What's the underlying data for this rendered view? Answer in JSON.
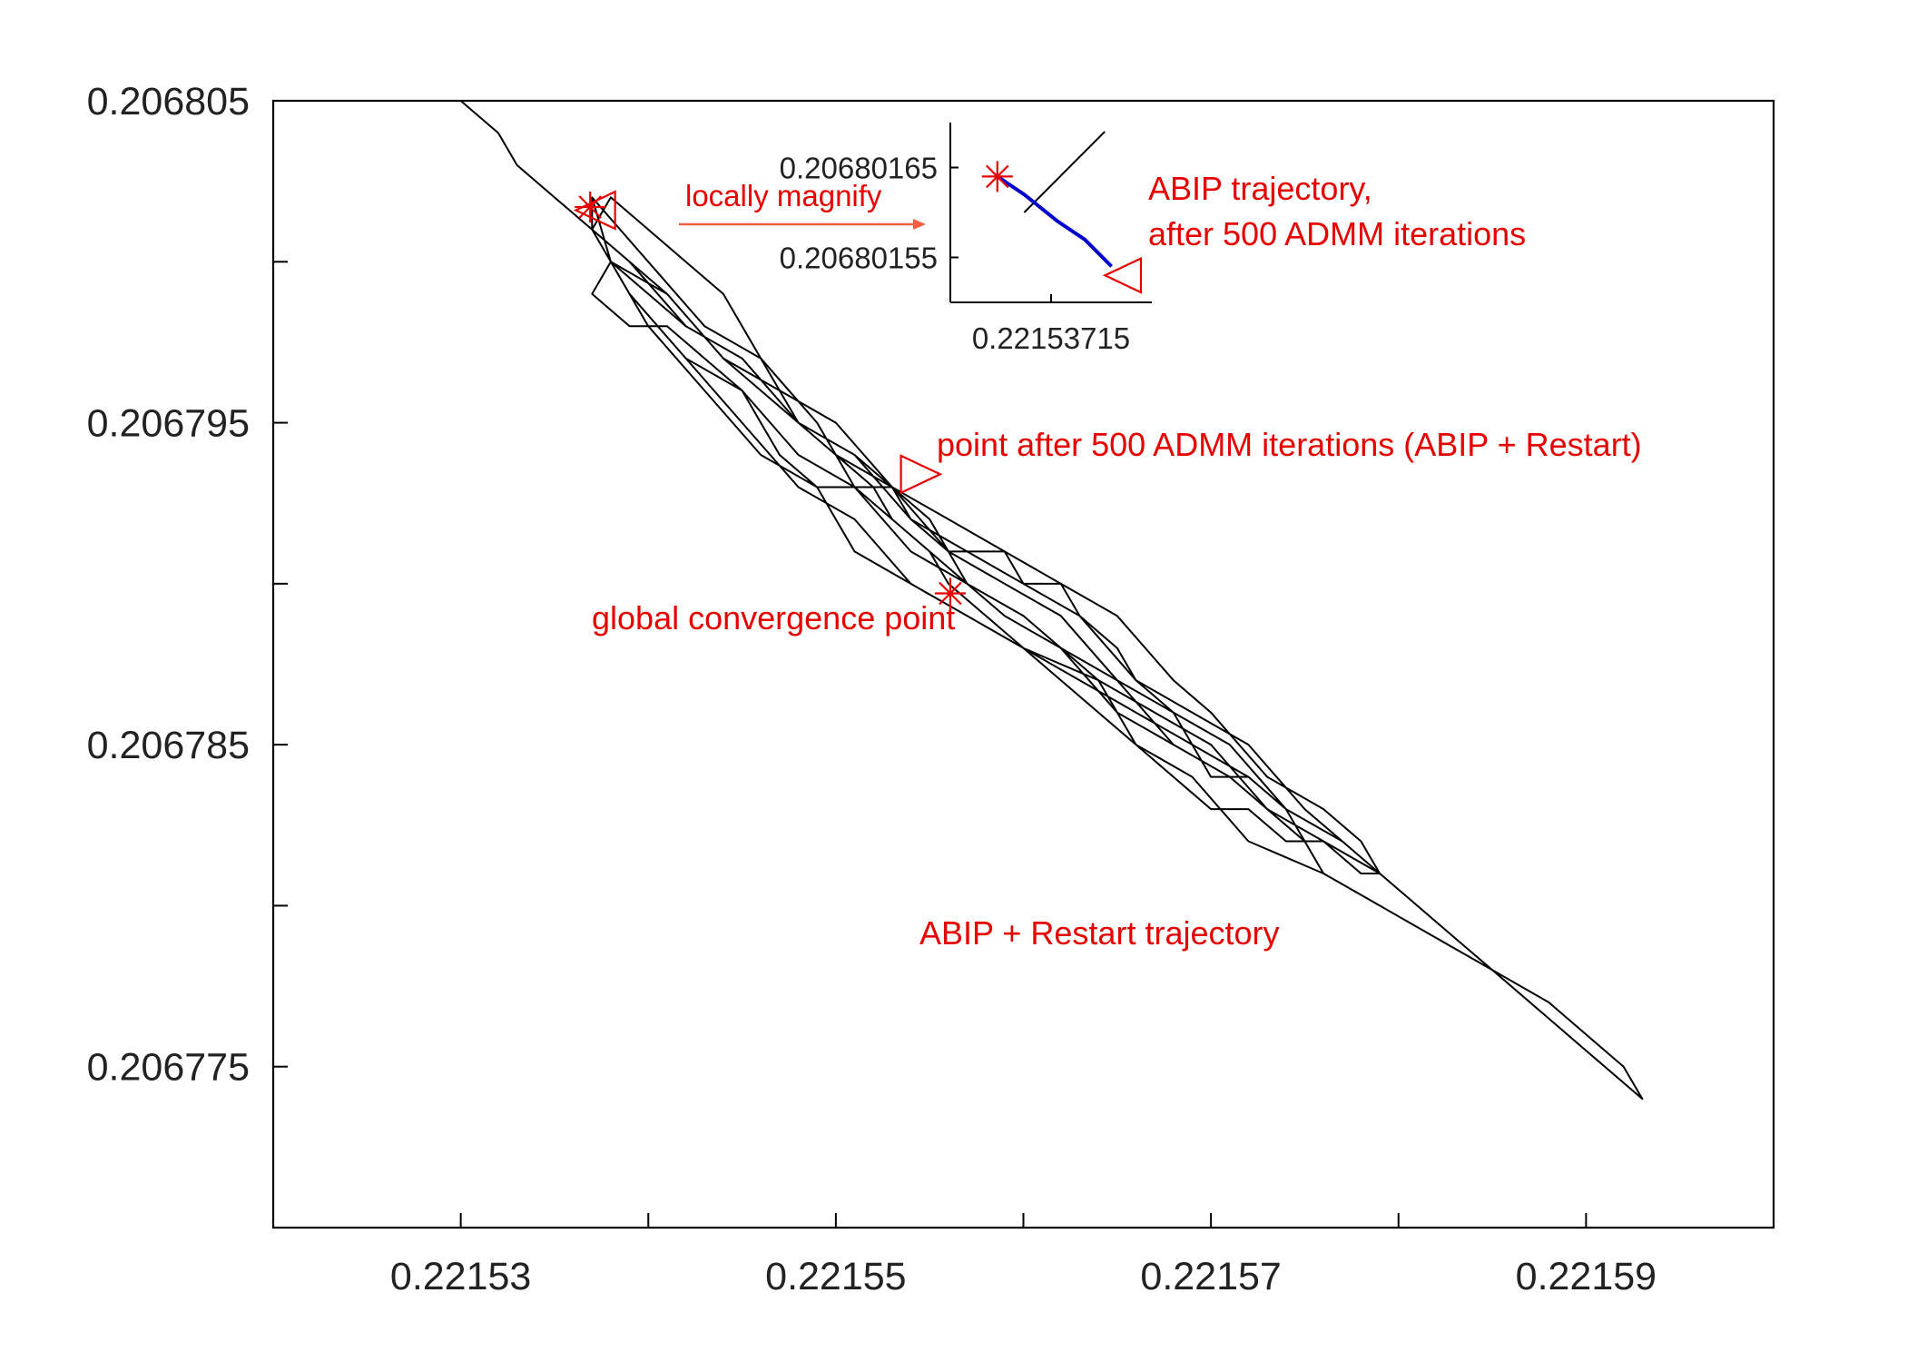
{
  "chart_data": [
    {
      "type": "line",
      "title": "",
      "xlabel": "",
      "ylabel": "",
      "xlim": [
        0.22152,
        0.2216
      ],
      "ylim": [
        0.20677,
        0.206805
      ],
      "x_ticks": [
        0.22153,
        0.22155,
        0.22157,
        0.22159
      ],
      "x_tick_labels": [
        "0.22153",
        "0.22155",
        "0.22157",
        "0.22159"
      ],
      "y_ticks": [
        0.206805,
        0.206795,
        0.206785,
        0.206775
      ],
      "y_tick_labels": [
        "0.206805",
        "0.206795",
        "0.206785",
        "0.206775"
      ],
      "grid": false,
      "series": [
        {
          "name": "ABIP + Restart trajectory",
          "color": "#000000",
          "x": [
            0.221529,
            0.22153,
            0.221532,
            0.221533,
            0.221535,
            0.221537,
            0.221538,
            0.221537,
            0.221539,
            0.221541,
            0.221543,
            0.221545,
            0.221546,
            0.221547,
            0.221549,
            0.22155,
            0.221551,
            0.221553,
            0.221554,
            0.221556,
            0.221557,
            0.221559,
            0.22156,
            0.221562,
            0.221563,
            0.221565,
            0.221566,
            0.221568,
            0.221569,
            0.22157,
            0.221572,
            0.221574,
            0.221575,
            0.221576,
            0.221578,
            0.221579,
            0.221581,
            0.221583,
            0.221585,
            0.221587,
            0.221589,
            0.221593,
            0.221592,
            0.22159,
            0.221588,
            0.221585,
            0.221582,
            0.221579,
            0.221576,
            0.221572,
            0.221569,
            0.221566,
            0.221564,
            0.22156,
            0.221557,
            0.221554,
            0.221551,
            0.221548,
            0.221545,
            0.221542,
            0.221539,
            0.221537,
            0.221538,
            0.22154,
            0.221544,
            0.221546,
            0.221548,
            0.22155,
            0.221552,
            0.221553,
            0.221555,
            0.221556,
            0.221558,
            0.22156,
            0.221562,
            0.221564,
            0.221566,
            0.221568,
            0.22157,
            0.221572,
            0.221574,
            0.221576,
            0.221578,
            0.221579,
            0.221577,
            0.221574,
            0.221572,
            0.221569,
            0.221566,
            0.221563,
            0.22156,
            0.221557,
            0.221554,
            0.221551,
            0.221549,
            0.221546,
            0.221543,
            0.22154,
            0.221538,
            0.221537,
            0.22154,
            0.221543,
            0.221546,
            0.221549,
            0.22155,
            0.221553,
            0.221555,
            0.221556,
            0.221557,
            0.221559,
            0.221562,
            0.221565,
            0.221568,
            0.221571,
            0.221573,
            0.221575,
            0.221576,
            0.221575,
            0.221573,
            0.221571,
            0.221568,
            0.221565,
            0.221562,
            0.221559,
            0.221557,
            0.221555,
            0.221553,
            0.221551,
            0.22155,
            0.221548,
            0.221546,
            0.221544,
            0.221541,
            0.221539,
            0.221537,
            0.221538,
            0.221541,
            0.221544,
            0.221547,
            0.22155,
            0.221553,
            0.221556,
            0.221559,
            0.221562,
            0.221565,
            0.221568,
            0.22157,
            0.221573,
            0.221576,
            0.221578,
            0.221579,
            0.221576,
            0.221573,
            0.22157,
            0.221567,
            0.221564,
            0.22156,
            0.221557,
            0.221554,
            0.221551,
            0.221548,
            0.221545,
            0.221542,
            0.221539,
            0.221537,
            0.221538,
            0.221542,
            0.221545,
            0.221548,
            0.221551,
            0.221554,
            0.221557,
            0.22156,
            0.221563,
            0.221566,
            0.221569,
            0.221572,
            0.221575,
            0.221577,
            0.221579,
            0.221577,
            0.221574,
            0.221571,
            0.221568,
            0.221565,
            0.221562,
            0.221559,
            0.221556,
            0.221553,
            0.221551,
            0.221548,
            0.221545,
            0.221542,
            0.221539,
            0.221537,
            0.221537
          ],
          "y": [
            0.206805,
            0.206805,
            0.206804,
            0.206803,
            0.206802,
            0.206801,
            0.2068,
            0.206799,
            0.206798,
            0.206798,
            0.206797,
            0.206796,
            0.206795,
            0.206794,
            0.206793,
            0.206793,
            0.206793,
            0.206793,
            0.206792,
            0.206791,
            0.206791,
            0.206791,
            0.20679,
            0.20679,
            0.206789,
            0.206788,
            0.206787,
            0.206786,
            0.206785,
            0.206784,
            0.206784,
            0.206783,
            0.206782,
            0.206782,
            0.206781,
            0.206781,
            0.20678,
            0.206779,
            0.206778,
            0.206777,
            0.206776,
            0.206774,
            0.206775,
            0.206776,
            0.206777,
            0.206778,
            0.206779,
            0.20678,
            0.206781,
            0.206782,
            0.206784,
            0.206785,
            0.206787,
            0.206788,
            0.206789,
            0.20679,
            0.206792,
            0.206793,
            0.206795,
            0.206797,
            0.206799,
            0.206801,
            0.206802,
            0.206801,
            0.206799,
            0.206797,
            0.206795,
            0.206794,
            0.206793,
            0.206792,
            0.206791,
            0.20679,
            0.206789,
            0.206788,
            0.206787,
            0.206786,
            0.206785,
            0.206784,
            0.206783,
            0.206783,
            0.206782,
            0.206782,
            0.206781,
            0.206781,
            0.206782,
            0.206783,
            0.206784,
            0.206785,
            0.206786,
            0.206787,
            0.206788,
            0.206789,
            0.20679,
            0.206791,
            0.206793,
            0.206794,
            0.206796,
            0.206798,
            0.2068,
            0.206802,
            0.2068,
            0.206798,
            0.206797,
            0.206795,
            0.206794,
            0.206793,
            0.206792,
            0.206791,
            0.20679,
            0.206789,
            0.206788,
            0.206786,
            0.206785,
            0.206784,
            0.206783,
            0.206782,
            0.206781,
            0.206782,
            0.206783,
            0.206784,
            0.206785,
            0.206787,
            0.206788,
            0.206789,
            0.20679,
            0.206791,
            0.206792,
            0.206793,
            0.206794,
            0.206795,
            0.206796,
            0.206797,
            0.206799,
            0.2068,
            0.206801,
            0.2068,
            0.206799,
            0.206797,
            0.206796,
            0.206795,
            0.206793,
            0.206792,
            0.206791,
            0.20679,
            0.206789,
            0.206787,
            0.206786,
            0.206784,
            0.206783,
            0.206782,
            0.206781,
            0.206782,
            0.206783,
            0.206785,
            0.206786,
            0.206787,
            0.206789,
            0.20679,
            0.206791,
            0.206793,
            0.206794,
            0.206796,
            0.206797,
            0.206799,
            0.206801,
            0.2068,
            0.206798,
            0.206797,
            0.206795,
            0.206794,
            0.206792,
            0.206791,
            0.20679,
            0.206789,
            0.206787,
            0.206786,
            0.206785,
            0.206783,
            0.206782,
            0.206781,
            0.206782,
            0.206783,
            0.206785,
            0.206786,
            0.206787,
            0.206789,
            0.20679,
            0.206791,
            0.206793,
            0.206794,
            0.206795,
            0.206797,
            0.206798,
            0.2068,
            0.206801,
            0.206802
          ]
        }
      ],
      "markers": [
        {
          "label": "global convergence point",
          "symbol": "star",
          "color": "#e60000",
          "x": 0.2215561,
          "y": 0.2067897
        },
        {
          "label": "point after 500 ADMM iterations (ABIP + Restart)",
          "symbol": "triangle-right",
          "color": "#e60000",
          "x": 0.2215544,
          "y": 0.2067934
        },
        {
          "label": "ABIP trajectory, after 500 ADMM iterations",
          "symbol": "triangle-left",
          "color": "#e60000",
          "x": 0.2215373,
          "y": 0.2068016
        },
        {
          "label": "",
          "symbol": "star",
          "color": "#e60000",
          "x": 0.2215369,
          "y": 0.2068017
        }
      ],
      "annotations": [
        {
          "id": "locally_magnify",
          "text": "locally magnify",
          "color": "#e60000"
        },
        {
          "id": "abip_traj_1",
          "text": "ABIP trajectory,",
          "color": "#e60000"
        },
        {
          "id": "abip_traj_2",
          "text": "after 500 ADMM iterations",
          "color": "#e60000"
        },
        {
          "id": "restart_point",
          "text": "point after 500 ADMM iterations (ABIP + Restart)",
          "color": "#e60000"
        },
        {
          "id": "global_point",
          "text": "global convergence point",
          "color": "#e60000"
        },
        {
          "id": "restart_traj",
          "text": "ABIP + Restart trajectory",
          "color": "#e60000"
        }
      ]
    },
    {
      "type": "line",
      "title": "",
      "inset": true,
      "xlabel": "",
      "ylabel": "",
      "x_ticks": [
        0.22153715
      ],
      "x_tick_labels": [
        "0.22153715"
      ],
      "y_ticks": [
        0.20680165,
        0.20680155
      ],
      "y_tick_labels": [
        "0.20680165",
        "0.20680155"
      ],
      "xlim": [
        0.221537,
        0.2215373
      ],
      "ylim": [
        0.2068015,
        0.2068017
      ],
      "series": [
        {
          "name": "",
          "color": "#000000",
          "x": [
            0.22153711,
            0.22153723
          ],
          "y": [
            0.2068016,
            0.20680169
          ]
        },
        {
          "name": "ABIP trajectory",
          "color": "#0000cc",
          "x": [
            0.22153707,
            0.22153711,
            0.22153716,
            0.2215372,
            0.22153724
          ],
          "y": [
            0.20680164,
            0.20680162,
            0.20680159,
            0.20680157,
            0.20680154
          ]
        }
      ],
      "markers": [
        {
          "label": "",
          "symbol": "star",
          "color": "#e60000",
          "x": 0.22153707,
          "y": 0.20680164
        },
        {
          "label": "",
          "symbol": "triangle-left",
          "color": "#e60000",
          "x": 0.22153726,
          "y": 0.20680153
        }
      ]
    }
  ]
}
